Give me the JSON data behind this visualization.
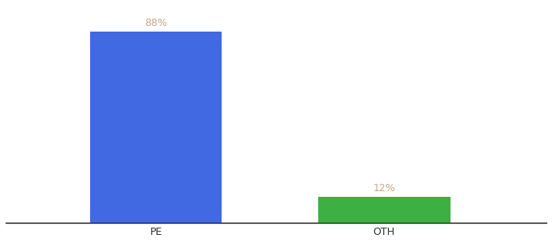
{
  "categories": [
    "PE",
    "OTH"
  ],
  "values": [
    88,
    12
  ],
  "bar_colors": [
    "#4169e1",
    "#3cb043"
  ],
  "label_texts": [
    "88%",
    "12%"
  ],
  "label_color": "#c8a882",
  "background_color": "#ffffff",
  "ylim": [
    0,
    100
  ],
  "tick_fontsize": 9,
  "label_fontsize": 9,
  "x_positions": [
    0.3,
    0.68
  ],
  "bar_width": 0.22,
  "xlim": [
    0.05,
    0.95
  ]
}
